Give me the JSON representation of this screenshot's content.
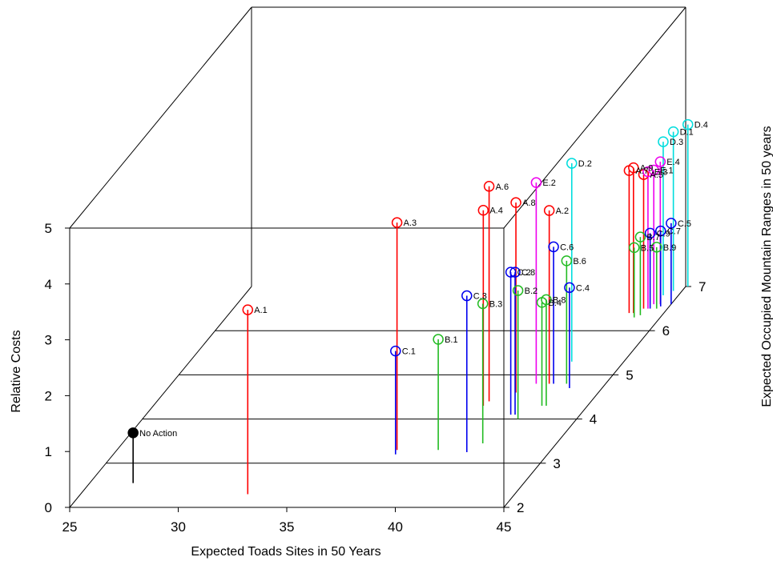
{
  "chart_data": {
    "type": "scatter",
    "subtype": "3d-scatter-with-drop-lines",
    "xlabel": "Expected Toads Sites in 50 Years",
    "ylabel": "Expected Occupied Mountain Ranges in 50 years",
    "zlabel": "Relative Costs",
    "xlim": [
      25,
      45
    ],
    "ylim": [
      2,
      7
    ],
    "zlim": [
      0,
      5
    ],
    "x_ticks": [
      "25",
      "30",
      "35",
      "40",
      "45"
    ],
    "y_ticks": [
      "2",
      "3",
      "4",
      "5",
      "6",
      "7"
    ],
    "z_ticks": [
      "0",
      "1",
      "2",
      "3",
      "4",
      "5"
    ],
    "grid": true,
    "colors": {
      "none": "#000000",
      "A": "#ff0000",
      "B": "#22bb22",
      "C": "#0000ee",
      "D": "#00dddd",
      "E": "#ee00ee"
    },
    "points": [
      {
        "label": "No Action",
        "group": "none",
        "filled": true,
        "x": 27.0,
        "y": 2.55,
        "z": 0.9
      },
      {
        "label": "A.1",
        "group": "A",
        "x": 32.7,
        "y": 2.3,
        "z": 3.3
      },
      {
        "label": "A.3",
        "group": "A",
        "x": 37.9,
        "y": 3.3,
        "z": 4.07
      },
      {
        "label": "C.1",
        "group": "C",
        "x": 38.0,
        "y": 3.2,
        "z": 1.85
      },
      {
        "label": "B.1",
        "group": "B",
        "x": 39.8,
        "y": 3.3,
        "z": 1.98
      },
      {
        "label": "A.6",
        "group": "A",
        "x": 40.3,
        "y": 4.4,
        "z": 3.85
      },
      {
        "label": "A.4",
        "group": "A",
        "x": 40.2,
        "y": 4.3,
        "z": 3.5
      },
      {
        "label": "C.3",
        "group": "C",
        "x": 41.2,
        "y": 3.25,
        "z": 2.8
      },
      {
        "label": "B.3",
        "group": "B",
        "x": 41.6,
        "y": 3.45,
        "z": 2.5
      },
      {
        "label": "A.8",
        "group": "A",
        "x": 41.2,
        "y": 4.6,
        "z": 3.4
      },
      {
        "label": "E.2",
        "group": "E",
        "x": 41.8,
        "y": 4.8,
        "z": 3.6
      },
      {
        "label": "A.2",
        "group": "A",
        "x": 42.4,
        "y": 4.8,
        "z": 3.1
      },
      {
        "label": "D.2",
        "group": "D",
        "x": 42.6,
        "y": 5.3,
        "z": 3.55
      },
      {
        "label": "C.2",
        "group": "C",
        "x": 41.8,
        "y": 4.1,
        "z": 2.55
      },
      {
        "label": "C.8",
        "group": "C",
        "x": 42.0,
        "y": 4.1,
        "z": 2.55
      },
      {
        "label": "B.2",
        "group": "B",
        "x": 42.3,
        "y": 4.0,
        "z": 2.3
      },
      {
        "label": "C.6",
        "group": "C",
        "x": 42.6,
        "y": 4.8,
        "z": 2.45
      },
      {
        "label": "B.6",
        "group": "B",
        "x": 43.2,
        "y": 4.8,
        "z": 2.2
      },
      {
        "label": "B.4",
        "group": "B",
        "x": 42.9,
        "y": 4.3,
        "z": 1.85
      },
      {
        "label": "B.8",
        "group": "B",
        "x": 43.1,
        "y": 4.3,
        "z": 1.9
      },
      {
        "label": "C.4",
        "group": "C",
        "x": 43.5,
        "y": 4.7,
        "z": 1.8
      },
      {
        "label": "A.7",
        "group": "A",
        "x": 43.4,
        "y": 6.4,
        "z": 2.55
      },
      {
        "label": "A.9",
        "group": "A",
        "x": 43.6,
        "y": 6.4,
        "z": 2.6
      },
      {
        "label": "A.5",
        "group": "A",
        "x": 43.9,
        "y": 6.5,
        "z": 2.4
      },
      {
        "label": "E.3",
        "group": "E",
        "x": 44.1,
        "y": 6.5,
        "z": 2.45
      },
      {
        "label": "E.1",
        "group": "E",
        "x": 44.2,
        "y": 6.6,
        "z": 2.4
      },
      {
        "label": "E.4",
        "group": "E",
        "x": 44.5,
        "y": 6.6,
        "z": 2.55
      },
      {
        "label": "D.3",
        "group": "D",
        "x": 44.3,
        "y": 6.8,
        "z": 2.75
      },
      {
        "label": "D.1",
        "group": "D",
        "x": 44.6,
        "y": 6.9,
        "z": 2.85
      },
      {
        "label": "D.4",
        "group": "D",
        "x": 45.1,
        "y": 7.0,
        "z": 2.9
      },
      {
        "label": "B.5",
        "group": "B",
        "x": 43.8,
        "y": 6.3,
        "z": 1.25
      },
      {
        "label": "B.7",
        "group": "B",
        "x": 44.0,
        "y": 6.35,
        "z": 1.4
      },
      {
        "label": "C.9",
        "group": "C",
        "x": 44.2,
        "y": 6.5,
        "z": 1.35
      },
      {
        "label": "C.7",
        "group": "C",
        "x": 44.6,
        "y": 6.55,
        "z": 1.35
      },
      {
        "label": "B.9",
        "group": "B",
        "x": 44.5,
        "y": 6.5,
        "z": 1.1
      },
      {
        "label": "C.5",
        "group": "C",
        "x": 45.0,
        "y": 6.6,
        "z": 1.45
      }
    ]
  }
}
